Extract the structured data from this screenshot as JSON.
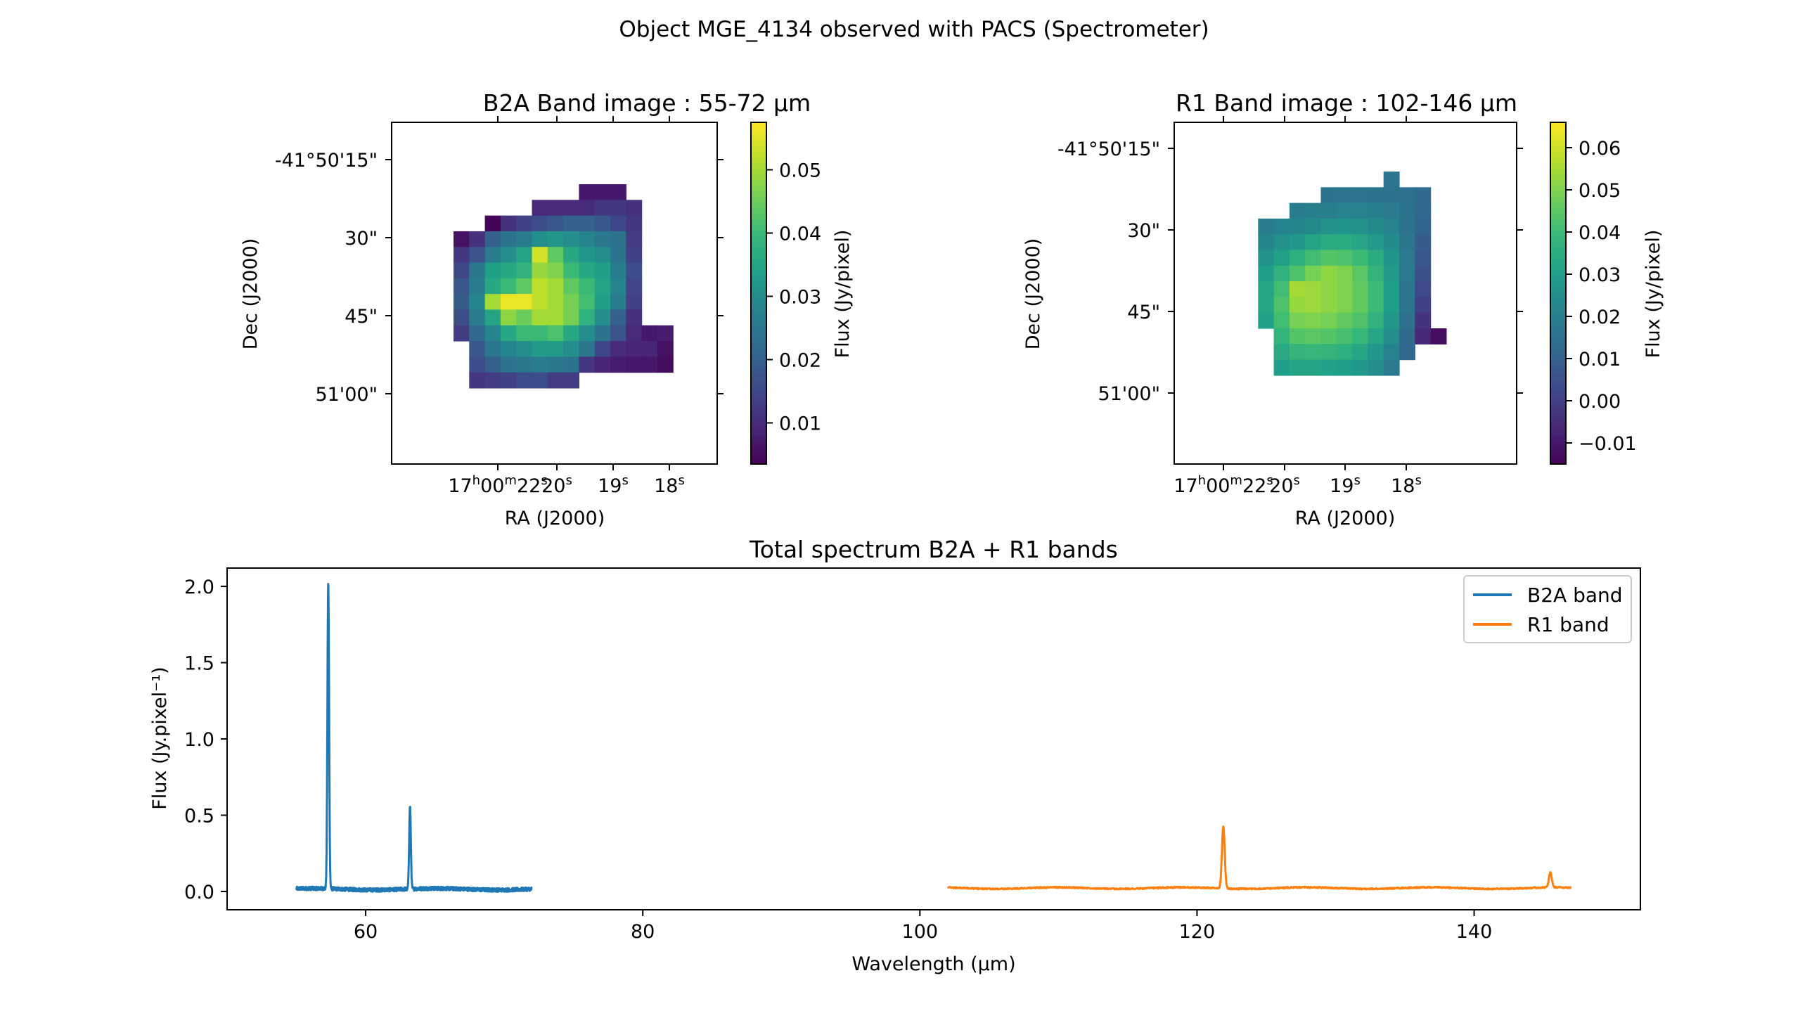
{
  "figure": {
    "title": "Object MGE_4134 observed with PACS (Spectrometer)"
  },
  "chart_data": [
    {
      "type": "heatmap",
      "title": "B2A Band image : 55-72 μm",
      "xlabel": "RA (J2000)",
      "ylabel": "Dec (J2000)",
      "x_ticks": [
        {
          "value": 22,
          "label": "17h00m22s"
        },
        {
          "value": 20,
          "label": "20s"
        },
        {
          "value": 19,
          "label": "19s"
        },
        {
          "value": 18,
          "label": "18s"
        }
      ],
      "y_ticks": [
        "-41°50'15\"",
        "30\"",
        "45\"",
        "51'00\""
      ],
      "colorbar": {
        "label": "Flux (Jy/pixel)",
        "range": [
          0.0035,
          0.0575
        ],
        "ticks": [
          0.01,
          0.02,
          0.03,
          0.04,
          0.05
        ]
      },
      "colormap": "viridis",
      "grid_values": [
        [
          null,
          null,
          null,
          null,
          null,
          null,
          null,
          null,
          0.007,
          0.007,
          0.007,
          null,
          null,
          null
        ],
        [
          null,
          null,
          null,
          null,
          null,
          0.01,
          0.01,
          0.01,
          0.01,
          0.012,
          0.012,
          0.011,
          null,
          null
        ],
        [
          null,
          null,
          0.004,
          0.011,
          0.014,
          0.016,
          0.018,
          0.02,
          0.02,
          0.018,
          0.015,
          0.012,
          null,
          null
        ],
        [
          0.006,
          0.011,
          0.02,
          0.024,
          0.026,
          0.03,
          0.032,
          0.03,
          0.028,
          0.025,
          0.024,
          0.013,
          null,
          null
        ],
        [
          0.012,
          0.017,
          0.026,
          0.03,
          0.035,
          0.054,
          0.044,
          0.036,
          0.032,
          0.03,
          0.024,
          0.014,
          null,
          null
        ],
        [
          0.015,
          0.025,
          0.034,
          0.036,
          0.038,
          0.049,
          0.047,
          0.04,
          0.036,
          0.034,
          0.026,
          0.016,
          null,
          null
        ],
        [
          0.018,
          0.026,
          0.036,
          0.04,
          0.044,
          0.052,
          0.05,
          0.044,
          0.04,
          0.035,
          0.028,
          0.015,
          null,
          null
        ],
        [
          0.019,
          0.028,
          0.05,
          0.056,
          0.056,
          0.052,
          0.05,
          0.046,
          0.041,
          0.034,
          0.026,
          0.014,
          null,
          null
        ],
        [
          0.016,
          0.026,
          0.035,
          0.048,
          0.045,
          0.05,
          0.05,
          0.046,
          0.038,
          0.03,
          0.02,
          0.011,
          null,
          null
        ],
        [
          0.013,
          0.022,
          0.028,
          0.036,
          0.04,
          0.04,
          0.042,
          0.036,
          0.03,
          0.024,
          0.017,
          0.01,
          0.007,
          0.008
        ],
        [
          null,
          0.018,
          0.025,
          0.028,
          0.03,
          0.033,
          0.033,
          0.03,
          0.025,
          0.015,
          0.01,
          0.009,
          0.009,
          0.006
        ],
        [
          null,
          0.016,
          0.02,
          0.024,
          0.025,
          0.026,
          0.025,
          0.024,
          0.012,
          0.009,
          0.008,
          0.007,
          0.007,
          0.005
        ],
        [
          null,
          0.012,
          0.013,
          0.014,
          0.016,
          0.016,
          0.013,
          0.013,
          null,
          null,
          null,
          null,
          null,
          null
        ]
      ]
    },
    {
      "type": "heatmap",
      "title": "R1 Band image : 102-146 μm",
      "xlabel": "RA (J2000)",
      "ylabel": "Dec (J2000)",
      "x_ticks": [
        {
          "value": 22,
          "label": "17h00m22s"
        },
        {
          "value": 20,
          "label": "20s"
        },
        {
          "value": 19,
          "label": "19s"
        },
        {
          "value": 18,
          "label": "18s"
        }
      ],
      "y_ticks": [
        "-41°50'15\"",
        "30\"",
        "45\"",
        "51'00\""
      ],
      "colorbar": {
        "label": "Flux (Jy/pixel)",
        "range": [
          -0.015,
          0.066
        ],
        "ticks": [
          -0.01,
          0.0,
          0.01,
          0.02,
          0.03,
          0.04,
          0.05,
          0.06
        ]
      },
      "colormap": "viridis",
      "grid_values": [
        [
          null,
          null,
          null,
          null,
          null,
          null,
          null,
          null,
          null,
          0.017,
          null,
          null,
          null,
          null
        ],
        [
          null,
          null,
          null,
          null,
          null,
          0.016,
          0.017,
          0.017,
          0.016,
          0.016,
          0.015,
          0.013,
          null,
          null
        ],
        [
          null,
          null,
          null,
          0.019,
          0.02,
          0.02,
          0.021,
          0.021,
          0.02,
          0.018,
          0.016,
          0.012,
          null,
          null
        ],
        [
          null,
          0.019,
          0.021,
          0.022,
          0.024,
          0.026,
          0.027,
          0.026,
          0.024,
          0.021,
          0.016,
          0.011,
          null,
          null
        ],
        [
          null,
          0.022,
          0.026,
          0.028,
          0.032,
          0.035,
          0.035,
          0.033,
          0.029,
          0.024,
          0.017,
          0.009,
          null,
          null
        ],
        [
          null,
          0.026,
          0.031,
          0.036,
          0.041,
          0.044,
          0.043,
          0.04,
          0.035,
          0.027,
          0.018,
          0.007,
          null,
          null
        ],
        [
          null,
          0.03,
          0.037,
          0.043,
          0.049,
          0.052,
          0.05,
          0.045,
          0.038,
          0.029,
          0.018,
          0.005,
          null,
          null
        ],
        [
          null,
          0.033,
          0.041,
          0.055,
          0.054,
          0.052,
          0.05,
          0.046,
          0.04,
          0.03,
          0.017,
          0.003,
          null,
          null
        ],
        [
          null,
          0.033,
          0.043,
          0.053,
          0.054,
          0.052,
          0.05,
          0.046,
          0.04,
          0.03,
          0.017,
          0.001,
          null,
          null
        ],
        [
          null,
          0.031,
          0.041,
          0.049,
          0.05,
          0.049,
          0.046,
          0.043,
          0.037,
          0.028,
          0.015,
          -0.003,
          null,
          null
        ],
        [
          null,
          null,
          0.038,
          0.044,
          0.045,
          0.044,
          0.042,
          0.039,
          0.033,
          0.025,
          0.013,
          -0.006,
          -0.012,
          null
        ],
        [
          null,
          null,
          0.034,
          0.038,
          0.039,
          0.038,
          0.036,
          0.033,
          0.028,
          0.021,
          0.012,
          null,
          null,
          null
        ],
        [
          null,
          null,
          0.03,
          0.032,
          0.032,
          0.031,
          0.03,
          0.028,
          0.025,
          0.018,
          null,
          null,
          null,
          null
        ]
      ]
    },
    {
      "type": "line",
      "title": "Total spectrum B2A + R1 bands",
      "xlabel": "Wavelength (μm)",
      "ylabel": "Flux (Jy.pixel⁻¹)",
      "xlim": [
        50,
        152
      ],
      "ylim": [
        -0.12,
        2.12
      ],
      "x_ticks": [
        60,
        80,
        100,
        120,
        140
      ],
      "y_ticks": [
        0.0,
        0.5,
        1.0,
        1.5,
        2.0
      ],
      "legend": "top-right",
      "series": [
        {
          "name": "B2A band",
          "color": "#1f77b4",
          "range": [
            55,
            72
          ],
          "baseline": 0.015,
          "noise": 0.012,
          "lines": [
            {
              "center": 57.3,
              "peak": 2.0,
              "width": 0.06
            },
            {
              "center": 63.2,
              "peak": 0.54,
              "width": 0.06
            }
          ]
        },
        {
          "name": "R1 band",
          "color": "#ff7f0e",
          "range": [
            102,
            147
          ],
          "baseline": 0.022,
          "noise": 0.004,
          "lines": [
            {
              "center": 121.9,
              "peak": 0.41,
              "width": 0.1
            },
            {
              "center": 145.5,
              "peak": 0.1,
              "width": 0.1
            }
          ]
        }
      ]
    }
  ]
}
